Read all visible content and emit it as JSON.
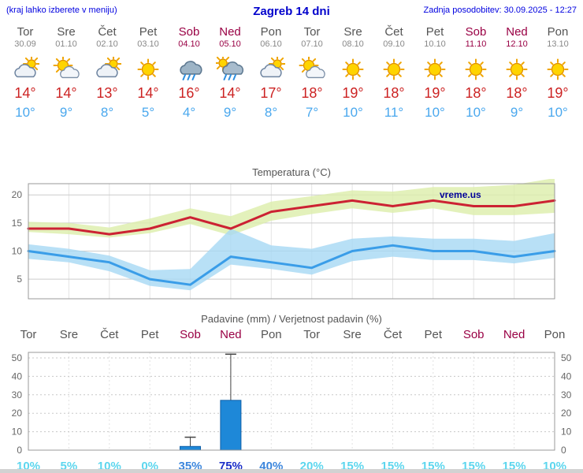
{
  "header": {
    "note": "(kraj lahko izberete v meniju)",
    "title": "Zagreb 14 dni",
    "last_update": "Zadnja posodobitev: 30.09.2025 - 12:27"
  },
  "colors": {
    "header_blue": "#0000cc",
    "weekend": "#990044",
    "temp_max": "#cc2222",
    "temp_min": "#4aa8ee",
    "prob_low": "#5cd6ee",
    "prob_mid": "#3c86dc",
    "prob_high": "#1a2ec8"
  },
  "days": [
    {
      "name": "Tor",
      "date": "30.09",
      "weekend": false,
      "icon": "cloud-sun",
      "tmax": "14°",
      "tmin": "10°"
    },
    {
      "name": "Sre",
      "date": "01.10",
      "weekend": false,
      "icon": "sun-cloud",
      "tmax": "14°",
      "tmin": "9°"
    },
    {
      "name": "Čet",
      "date": "02.10",
      "weekend": false,
      "icon": "cloud-sun",
      "tmax": "13°",
      "tmin": "8°"
    },
    {
      "name": "Pet",
      "date": "03.10",
      "weekend": false,
      "icon": "sun",
      "tmax": "14°",
      "tmin": "5°"
    },
    {
      "name": "Sob",
      "date": "04.10",
      "weekend": true,
      "icon": "rain",
      "tmax": "16°",
      "tmin": "4°"
    },
    {
      "name": "Ned",
      "date": "05.10",
      "weekend": true,
      "icon": "rain-sun",
      "tmax": "14°",
      "tmin": "9°"
    },
    {
      "name": "Pon",
      "date": "06.10",
      "weekend": false,
      "icon": "cloud-sun",
      "tmax": "17°",
      "tmin": "8°"
    },
    {
      "name": "Tor",
      "date": "07.10",
      "weekend": false,
      "icon": "sun-cloud",
      "tmax": "18°",
      "tmin": "7°"
    },
    {
      "name": "Sre",
      "date": "08.10",
      "weekend": false,
      "icon": "sun",
      "tmax": "19°",
      "tmin": "10°"
    },
    {
      "name": "Čet",
      "date": "09.10",
      "weekend": false,
      "icon": "sun",
      "tmax": "18°",
      "tmin": "11°"
    },
    {
      "name": "Pet",
      "date": "10.10",
      "weekend": false,
      "icon": "sun",
      "tmax": "19°",
      "tmin": "10°"
    },
    {
      "name": "Sob",
      "date": "11.10",
      "weekend": true,
      "icon": "sun",
      "tmax": "18°",
      "tmin": "10°"
    },
    {
      "name": "Ned",
      "date": "12.10",
      "weekend": true,
      "icon": "sun",
      "tmax": "18°",
      "tmin": "9°"
    },
    {
      "name": "Pon",
      "date": "13.10",
      "weekend": false,
      "icon": "sun",
      "tmax": "19°",
      "tmin": "10°"
    }
  ],
  "chart_data": [
    {
      "type": "line",
      "title": "Temperatura (°C)",
      "watermark": "vreme.us",
      "x_labels": [
        "Tor",
        "Sre",
        "Čet",
        "Pet",
        "Sob",
        "Ned",
        "Pon",
        "Tor",
        "Sre",
        "Čet",
        "Pet",
        "Sob",
        "Ned",
        "Pon"
      ],
      "ylim": [
        1.5,
        22
      ],
      "yticks": [
        5,
        10,
        15,
        20
      ],
      "grid": true,
      "series": [
        {
          "name": "temp-max",
          "color": "#cc2233",
          "band_fill": "#dcedaa",
          "values": [
            14,
            14,
            13,
            14,
            16,
            14,
            17,
            18,
            19,
            18,
            19,
            18,
            18,
            19
          ],
          "band_upper": [
            15.2,
            15,
            14.2,
            15.8,
            17.6,
            16.2,
            18.8,
            19.8,
            20.8,
            20.6,
            21.4,
            21.4,
            21.8,
            23
          ],
          "band_lower": [
            13.4,
            13,
            12.4,
            13.2,
            14.8,
            12.8,
            15.4,
            16.6,
            17.6,
            16.8,
            17.6,
            16.4,
            16.4,
            16.8
          ]
        },
        {
          "name": "temp-min",
          "color": "#3a9de8",
          "band_fill": "#a6d8f4",
          "values": [
            10,
            9,
            8,
            5,
            4,
            9,
            8,
            7,
            10,
            11,
            10,
            10,
            9,
            10
          ],
          "band_upper": [
            11.2,
            10.4,
            9.2,
            6.6,
            6.8,
            14,
            11,
            10.4,
            12.2,
            12.6,
            12.2,
            12.2,
            11.8,
            13.2
          ],
          "band_lower": [
            8.6,
            8,
            6.4,
            3.8,
            3,
            7.6,
            6.8,
            5.8,
            8.2,
            9,
            8.4,
            8.4,
            7.8,
            8.8
          ]
        }
      ]
    },
    {
      "type": "bar",
      "title": "Padavine (mm) / Verjetnost padavin (%)",
      "categories": [
        "Tor",
        "Sre",
        "Čet",
        "Pet",
        "Sob",
        "Ned",
        "Pon",
        "Tor",
        "Sre",
        "Čet",
        "Pet",
        "Sob",
        "Ned",
        "Pon"
      ],
      "values": [
        0,
        0,
        0,
        0,
        2,
        27,
        0,
        0,
        0,
        0,
        0,
        0,
        0,
        0
      ],
      "whisker_max": [
        0,
        0,
        0,
        0,
        7,
        52,
        0,
        0,
        0,
        0,
        0,
        0,
        0,
        0
      ],
      "ylim": [
        0,
        53
      ],
      "yticks": [
        0,
        10,
        20,
        30,
        40,
        50
      ],
      "bar_color": "#1e88d8",
      "probabilities": [
        {
          "label": "10%",
          "level": "low"
        },
        {
          "label": "5%",
          "level": "low"
        },
        {
          "label": "10%",
          "level": "low"
        },
        {
          "label": "0%",
          "level": "low"
        },
        {
          "label": "35%",
          "level": "mid"
        },
        {
          "label": "75%",
          "level": "high"
        },
        {
          "label": "40%",
          "level": "mid"
        },
        {
          "label": "20%",
          "level": "low"
        },
        {
          "label": "15%",
          "level": "low"
        },
        {
          "label": "15%",
          "level": "low"
        },
        {
          "label": "15%",
          "level": "low"
        },
        {
          "label": "15%",
          "level": "low"
        },
        {
          "label": "15%",
          "level": "low"
        },
        {
          "label": "10%",
          "level": "low"
        }
      ]
    }
  ]
}
